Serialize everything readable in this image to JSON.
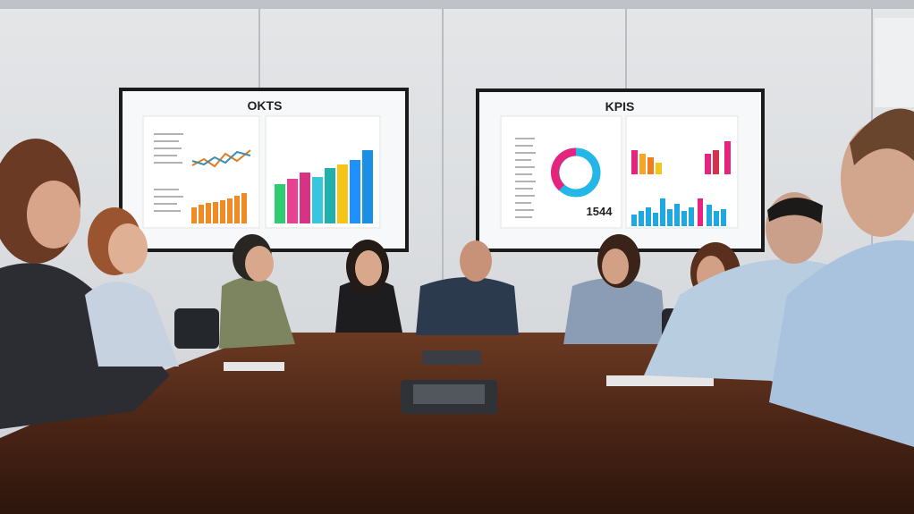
{
  "screens": [
    {
      "title": "OKTS"
    },
    {
      "title": "KPIS",
      "figure": "1544"
    }
  ]
}
